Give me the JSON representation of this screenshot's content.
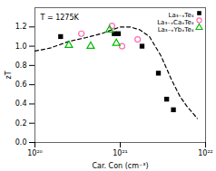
{
  "chart_data": {
    "type": "scatter",
    "title": "T = 1275K",
    "xlabel": "Car. Con (cm⁻³)",
    "ylabel": "zT",
    "log": "x",
    "xlim": [
      1e+20,
      1e+22
    ],
    "xticks": [
      {
        "value": 1e+20,
        "label": "10²⁰"
      },
      {
        "value": 1e+21,
        "label": "10²¹"
      },
      {
        "value": 1e+22,
        "label": "10²²"
      }
    ],
    "ylim": [
      0.0,
      1.4
    ],
    "yticks": [
      {
        "value": 0.0,
        "label": "0.0"
      },
      0.2,
      0.4,
      0.6,
      0.8,
      {
        "value": 1.0,
        "label": "1.0"
      },
      1.2
    ],
    "grid": false,
    "legend": "upper right",
    "series": [
      {
        "type": "line",
        "color": "black",
        "line_style": "dashed",
        "x": [
          1e+20,
          1.5e+20,
          2.5e+20,
          4e+20,
          6e+20,
          8e+20,
          1e+21,
          1.3e+21,
          1.7e+21,
          2.2e+21,
          3e+21,
          4e+21,
          5e+21,
          6e+21,
          8e+21
        ],
        "values": [
          0.95,
          0.98,
          1.05,
          1.09,
          1.13,
          1.17,
          1.2,
          1.2,
          1.17,
          1.1,
          0.9,
          0.65,
          0.48,
          0.38,
          0.25
        ]
      },
      {
        "name": "La₃₋ₓTe₄",
        "type": "scatter",
        "color": "black",
        "marker": "square",
        "x": [
          2e+20,
          8.5e+20,
          9.5e+20,
          1.8e+21,
          2.8e+21,
          3.5e+21,
          4.2e+21
        ],
        "values": [
          1.1,
          1.13,
          1.13,
          1.0,
          0.72,
          0.45,
          0.34
        ]
      },
      {
        "name": "La₃₋ₓCaₓTe₄",
        "type": "scatter",
        "color": "#ff69b4",
        "marker": "circle",
        "x": [
          3.5e+20,
          8e+20,
          1.05e+21,
          1.6e+21
        ],
        "values": [
          1.13,
          1.21,
          1.0,
          1.07
        ]
      },
      {
        "name": "La₃₋ₓYbₓTe₄",
        "type": "scatter",
        "color": "#00bb00",
        "marker": "triangle",
        "x": [
          2.5e+20,
          4.5e+20,
          7.5e+20,
          9e+20
        ],
        "values": [
          1.01,
          1.0,
          1.17,
          1.03
        ]
      }
    ]
  }
}
